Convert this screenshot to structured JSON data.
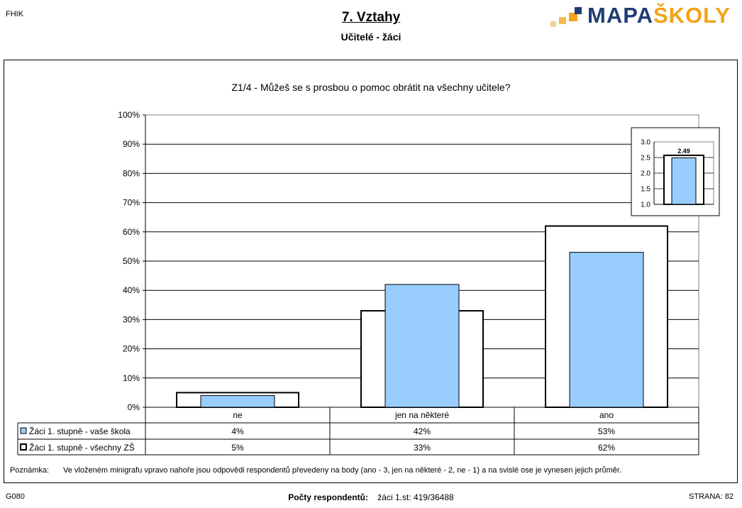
{
  "header": {
    "corner_left": "FHIK",
    "title": "7. Vztahy",
    "subtitle": "Učitelé - žáci",
    "logo_part1": "MAPA",
    "logo_part2": "ŠKOLY"
  },
  "colors": {
    "series1_fill": "#99ccff",
    "series2_fill": "#ffffff",
    "logo_blue": "#1f3d74",
    "logo_orange": "#f2a31b"
  },
  "chart_data": [
    {
      "type": "bar",
      "title": "Z1/4 - Můžeš se s prosbou o pomoc obrátit na všechny učitele?",
      "categories": [
        "ne",
        "jen na některé",
        "ano"
      ],
      "series": [
        {
          "name": "Žáci 1. stupně - vaše škola",
          "values": [
            4,
            42,
            53
          ],
          "labels": [
            "4%",
            "42%",
            "53%"
          ]
        },
        {
          "name": "Žáci 1. stupně - všechny ZŠ",
          "values": [
            5,
            33,
            62
          ],
          "labels": [
            "5%",
            "33%",
            "62%"
          ]
        }
      ],
      "ylim": [
        0,
        100
      ],
      "yticks": [
        "0%",
        "10%",
        "20%",
        "30%",
        "40%",
        "50%",
        "60%",
        "70%",
        "80%",
        "90%",
        "100%"
      ],
      "grid": true,
      "legend": "data table below chart"
    },
    {
      "type": "bar",
      "title": "",
      "series": [
        {
          "name": "Žáci 1. stupně - vaše škola",
          "values": [
            2.49
          ],
          "label": "2.49"
        },
        {
          "name": "Žáci 1. stupně - všechny ZŠ",
          "values": [
            2.57
          ]
        }
      ],
      "ylim": [
        1.0,
        3.0
      ],
      "yticks": [
        "1.0",
        "1.5",
        "2.0",
        "2.5",
        "3.0"
      ],
      "placement": "top-right inset"
    }
  ],
  "note": {
    "label": "Poznámka:",
    "text": "Ve vloženém minigrafu vpravo nahoře jsou odpovědi respondentů převedeny na body (ano - 3, jen na některé - 2, ne - 1) a na svislé ose je vynesen jejich průměr."
  },
  "footer": {
    "left": "G080",
    "respondents_label": "Počty respondentů:",
    "respondents_value": "žáci 1.st: 419/36488",
    "right": "STRANA: 82"
  }
}
